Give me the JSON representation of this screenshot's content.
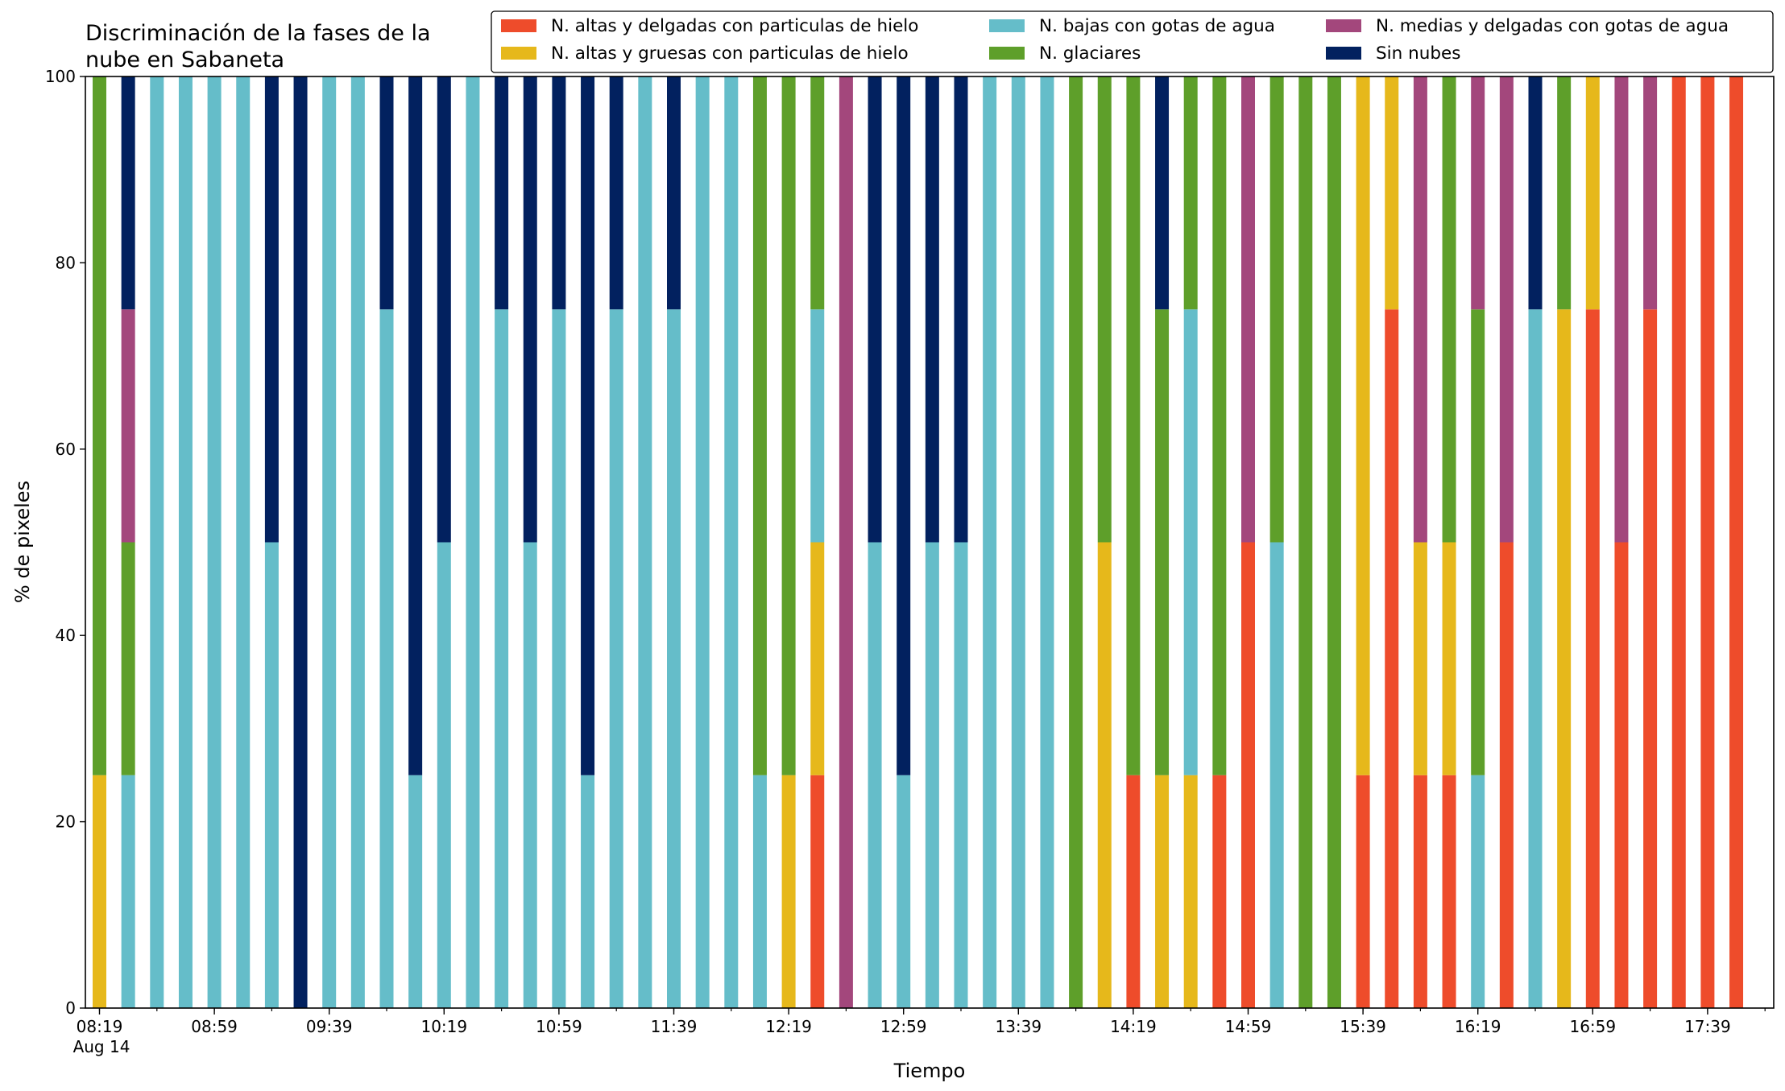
{
  "chart_data": {
    "type": "bar",
    "stacked": true,
    "title_line1": "Discriminación de la fases de la",
    "title_line2": "nube en Sabaneta",
    "xlabel": "Tiempo",
    "ylabel": "% de pixeles",
    "ylim": [
      0,
      100
    ],
    "yticks": [
      0,
      20,
      40,
      60,
      80,
      100
    ],
    "date_label": "Aug 14",
    "x_start": "08:19",
    "x_step_minutes": 10,
    "xtick_labels": [
      "08:19",
      "08:59",
      "09:39",
      "10:19",
      "10:59",
      "11:39",
      "12:19",
      "12:59",
      "13:39",
      "14:19",
      "14:59",
      "15:39",
      "16:19",
      "16:59",
      "17:39"
    ],
    "grid": false,
    "legend_position": "top-right",
    "colors": {
      "alta_delgada": "#ee4c2b",
      "alta_gruesa": "#e6b81b",
      "baja_agua": "#65bdc9",
      "glaciar": "#5e9f2a",
      "media_agua": "#a3477c",
      "sin_nubes": "#02215f"
    },
    "legend": [
      {
        "key": "alta_delgada",
        "label": "N. altas y delgadas con particulas de hielo"
      },
      {
        "key": "alta_gruesa",
        "label": "N. altas y gruesas con particulas de hielo"
      },
      {
        "key": "baja_agua",
        "label": "N. bajas con gotas de agua"
      },
      {
        "key": "glaciar",
        "label": "N. glaciares"
      },
      {
        "key": "media_agua",
        "label": "N. medias y delgadas con gotas de agua"
      },
      {
        "key": "sin_nubes",
        "label": "Sin nubes"
      }
    ],
    "stack_order": [
      "alta_delgada",
      "alta_gruesa",
      "baja_agua",
      "glaciar",
      "media_agua",
      "sin_nubes"
    ],
    "bars": [
      {
        "time": "08:19",
        "alta_delgada": 0,
        "alta_gruesa": 25,
        "baja_agua": 0,
        "glaciar": 75,
        "media_agua": 0,
        "sin_nubes": 0
      },
      {
        "time": "08:29",
        "alta_delgada": 0,
        "alta_gruesa": 0,
        "baja_agua": 25,
        "glaciar": 25,
        "media_agua": 25,
        "sin_nubes": 25
      },
      {
        "time": "08:39",
        "alta_delgada": 0,
        "alta_gruesa": 0,
        "baja_agua": 100,
        "glaciar": 0,
        "media_agua": 0,
        "sin_nubes": 0
      },
      {
        "time": "08:49",
        "alta_delgada": 0,
        "alta_gruesa": 0,
        "baja_agua": 100,
        "glaciar": 0,
        "media_agua": 0,
        "sin_nubes": 0
      },
      {
        "time": "08:59",
        "alta_delgada": 0,
        "alta_gruesa": 0,
        "baja_agua": 100,
        "glaciar": 0,
        "media_agua": 0,
        "sin_nubes": 0
      },
      {
        "time": "09:09",
        "alta_delgada": 0,
        "alta_gruesa": 0,
        "baja_agua": 100,
        "glaciar": 0,
        "media_agua": 0,
        "sin_nubes": 0
      },
      {
        "time": "09:19",
        "alta_delgada": 0,
        "alta_gruesa": 0,
        "baja_agua": 50,
        "glaciar": 0,
        "media_agua": 0,
        "sin_nubes": 50
      },
      {
        "time": "09:29",
        "alta_delgada": 0,
        "alta_gruesa": 0,
        "baja_agua": 0,
        "glaciar": 0,
        "media_agua": 0,
        "sin_nubes": 100
      },
      {
        "time": "09:39",
        "alta_delgada": 0,
        "alta_gruesa": 0,
        "baja_agua": 100,
        "glaciar": 0,
        "media_agua": 0,
        "sin_nubes": 0
      },
      {
        "time": "09:49",
        "alta_delgada": 0,
        "alta_gruesa": 0,
        "baja_agua": 100,
        "glaciar": 0,
        "media_agua": 0,
        "sin_nubes": 0
      },
      {
        "time": "09:59",
        "alta_delgada": 0,
        "alta_gruesa": 0,
        "baja_agua": 75,
        "glaciar": 0,
        "media_agua": 0,
        "sin_nubes": 25
      },
      {
        "time": "10:09",
        "alta_delgada": 0,
        "alta_gruesa": 0,
        "baja_agua": 25,
        "glaciar": 0,
        "media_agua": 0,
        "sin_nubes": 75
      },
      {
        "time": "10:19",
        "alta_delgada": 0,
        "alta_gruesa": 0,
        "baja_agua": 50,
        "glaciar": 0,
        "media_agua": 0,
        "sin_nubes": 50
      },
      {
        "time": "10:29",
        "alta_delgada": 0,
        "alta_gruesa": 0,
        "baja_agua": 100,
        "glaciar": 0,
        "media_agua": 0,
        "sin_nubes": 0
      },
      {
        "time": "10:39",
        "alta_delgada": 0,
        "alta_gruesa": 0,
        "baja_agua": 75,
        "glaciar": 0,
        "media_agua": 0,
        "sin_nubes": 25
      },
      {
        "time": "10:49",
        "alta_delgada": 0,
        "alta_gruesa": 0,
        "baja_agua": 50,
        "glaciar": 0,
        "media_agua": 0,
        "sin_nubes": 50
      },
      {
        "time": "10:59",
        "alta_delgada": 0,
        "alta_gruesa": 0,
        "baja_agua": 75,
        "glaciar": 0,
        "media_agua": 0,
        "sin_nubes": 25
      },
      {
        "time": "11:09",
        "alta_delgada": 0,
        "alta_gruesa": 0,
        "baja_agua": 25,
        "glaciar": 0,
        "media_agua": 0,
        "sin_nubes": 75
      },
      {
        "time": "11:19",
        "alta_delgada": 0,
        "alta_gruesa": 0,
        "baja_agua": 75,
        "glaciar": 0,
        "media_agua": 0,
        "sin_nubes": 25
      },
      {
        "time": "11:29",
        "alta_delgada": 0,
        "alta_gruesa": 0,
        "baja_agua": 100,
        "glaciar": 0,
        "media_agua": 0,
        "sin_nubes": 0
      },
      {
        "time": "11:39",
        "alta_delgada": 0,
        "alta_gruesa": 0,
        "baja_agua": 75,
        "glaciar": 0,
        "media_agua": 0,
        "sin_nubes": 25
      },
      {
        "time": "11:49",
        "alta_delgada": 0,
        "alta_gruesa": 0,
        "baja_agua": 100,
        "glaciar": 0,
        "media_agua": 0,
        "sin_nubes": 0
      },
      {
        "time": "11:59",
        "alta_delgada": 0,
        "alta_gruesa": 0,
        "baja_agua": 100,
        "glaciar": 0,
        "media_agua": 0,
        "sin_nubes": 0
      },
      {
        "time": "12:09",
        "alta_delgada": 0,
        "alta_gruesa": 0,
        "baja_agua": 25,
        "glaciar": 75,
        "media_agua": 0,
        "sin_nubes": 0
      },
      {
        "time": "12:19",
        "alta_delgada": 0,
        "alta_gruesa": 25,
        "baja_agua": 0,
        "glaciar": 75,
        "media_agua": 0,
        "sin_nubes": 0
      },
      {
        "time": "12:29",
        "alta_delgada": 25,
        "alta_gruesa": 25,
        "baja_agua": 25,
        "glaciar": 25,
        "media_agua": 0,
        "sin_nubes": 0
      },
      {
        "time": "12:39",
        "alta_delgada": 0,
        "alta_gruesa": 0,
        "baja_agua": 0,
        "glaciar": 0,
        "media_agua": 100,
        "sin_nubes": 0
      },
      {
        "time": "12:49",
        "alta_delgada": 0,
        "alta_gruesa": 0,
        "baja_agua": 50,
        "glaciar": 0,
        "media_agua": 0,
        "sin_nubes": 50
      },
      {
        "time": "12:59",
        "alta_delgada": 0,
        "alta_gruesa": 0,
        "baja_agua": 25,
        "glaciar": 0,
        "media_agua": 0,
        "sin_nubes": 75
      },
      {
        "time": "13:09",
        "alta_delgada": 0,
        "alta_gruesa": 0,
        "baja_agua": 50,
        "glaciar": 0,
        "media_agua": 0,
        "sin_nubes": 50
      },
      {
        "time": "13:19",
        "alta_delgada": 0,
        "alta_gruesa": 0,
        "baja_agua": 50,
        "glaciar": 0,
        "media_agua": 0,
        "sin_nubes": 50
      },
      {
        "time": "13:29",
        "alta_delgada": 0,
        "alta_gruesa": 0,
        "baja_agua": 100,
        "glaciar": 0,
        "media_agua": 0,
        "sin_nubes": 0
      },
      {
        "time": "13:39",
        "alta_delgada": 0,
        "alta_gruesa": 0,
        "baja_agua": 100,
        "glaciar": 0,
        "media_agua": 0,
        "sin_nubes": 0
      },
      {
        "time": "13:49",
        "alta_delgada": 0,
        "alta_gruesa": 0,
        "baja_agua": 100,
        "glaciar": 0,
        "media_agua": 0,
        "sin_nubes": 0
      },
      {
        "time": "13:59",
        "alta_delgada": 0,
        "alta_gruesa": 0,
        "baja_agua": 0,
        "glaciar": 100,
        "media_agua": 0,
        "sin_nubes": 0
      },
      {
        "time": "14:09",
        "alta_delgada": 0,
        "alta_gruesa": 50,
        "baja_agua": 0,
        "glaciar": 50,
        "media_agua": 0,
        "sin_nubes": 0
      },
      {
        "time": "14:19",
        "alta_delgada": 25,
        "alta_gruesa": 0,
        "baja_agua": 0,
        "glaciar": 75,
        "media_agua": 0,
        "sin_nubes": 0
      },
      {
        "time": "14:29",
        "alta_delgada": 0,
        "alta_gruesa": 25,
        "baja_agua": 0,
        "glaciar": 50,
        "media_agua": 0,
        "sin_nubes": 25
      },
      {
        "time": "14:39",
        "alta_delgada": 0,
        "alta_gruesa": 25,
        "baja_agua": 50,
        "glaciar": 25,
        "media_agua": 0,
        "sin_nubes": 0
      },
      {
        "time": "14:49",
        "alta_delgada": 25,
        "alta_gruesa": 0,
        "baja_agua": 0,
        "glaciar": 75,
        "media_agua": 0,
        "sin_nubes": 0
      },
      {
        "time": "14:59",
        "alta_delgada": 50,
        "alta_gruesa": 0,
        "baja_agua": 0,
        "glaciar": 0,
        "media_agua": 50,
        "sin_nubes": 0
      },
      {
        "time": "15:09",
        "alta_delgada": 0,
        "alta_gruesa": 0,
        "baja_agua": 50,
        "glaciar": 50,
        "media_agua": 0,
        "sin_nubes": 0
      },
      {
        "time": "15:19",
        "alta_delgada": 0,
        "alta_gruesa": 0,
        "baja_agua": 0,
        "glaciar": 100,
        "media_agua": 0,
        "sin_nubes": 0
      },
      {
        "time": "15:29",
        "alta_delgada": 0,
        "alta_gruesa": 0,
        "baja_agua": 0,
        "glaciar": 100,
        "media_agua": 0,
        "sin_nubes": 0
      },
      {
        "time": "15:39",
        "alta_delgada": 25,
        "alta_gruesa": 75,
        "baja_agua": 0,
        "glaciar": 0,
        "media_agua": 0,
        "sin_nubes": 0
      },
      {
        "time": "15:49",
        "alta_delgada": 75,
        "alta_gruesa": 25,
        "baja_agua": 0,
        "glaciar": 0,
        "media_agua": 0,
        "sin_nubes": 0
      },
      {
        "time": "15:59",
        "alta_delgada": 25,
        "alta_gruesa": 25,
        "baja_agua": 0,
        "glaciar": 0,
        "media_agua": 50,
        "sin_nubes": 0
      },
      {
        "time": "16:09",
        "alta_delgada": 25,
        "alta_gruesa": 25,
        "baja_agua": 0,
        "glaciar": 50,
        "media_agua": 0,
        "sin_nubes": 0
      },
      {
        "time": "16:19",
        "alta_delgada": 0,
        "alta_gruesa": 0,
        "baja_agua": 25,
        "glaciar": 50,
        "media_agua": 25,
        "sin_nubes": 0
      },
      {
        "time": "16:29",
        "alta_delgada": 50,
        "alta_gruesa": 0,
        "baja_agua": 0,
        "glaciar": 0,
        "media_agua": 50,
        "sin_nubes": 0
      },
      {
        "time": "16:39",
        "alta_delgada": 0,
        "alta_gruesa": 0,
        "baja_agua": 75,
        "glaciar": 0,
        "media_agua": 0,
        "sin_nubes": 25
      },
      {
        "time": "16:49",
        "alta_delgada": 0,
        "alta_gruesa": 75,
        "baja_agua": 0,
        "glaciar": 25,
        "media_agua": 0,
        "sin_nubes": 0
      },
      {
        "time": "16:59",
        "alta_delgada": 75,
        "alta_gruesa": 25,
        "baja_agua": 0,
        "glaciar": 0,
        "media_agua": 0,
        "sin_nubes": 0
      },
      {
        "time": "17:09",
        "alta_delgada": 50,
        "alta_gruesa": 0,
        "baja_agua": 0,
        "glaciar": 0,
        "media_agua": 50,
        "sin_nubes": 0
      },
      {
        "time": "17:19",
        "alta_delgada": 75,
        "alta_gruesa": 0,
        "baja_agua": 0,
        "glaciar": 0,
        "media_agua": 25,
        "sin_nubes": 0
      },
      {
        "time": "17:29",
        "alta_delgada": 100,
        "alta_gruesa": 0,
        "baja_agua": 0,
        "glaciar": 0,
        "media_agua": 0,
        "sin_nubes": 0
      },
      {
        "time": "17:39",
        "alta_delgada": 100,
        "alta_gruesa": 0,
        "baja_agua": 0,
        "glaciar": 0,
        "media_agua": 0,
        "sin_nubes": 0
      },
      {
        "time": "17:49",
        "alta_delgada": 100,
        "alta_gruesa": 0,
        "baja_agua": 0,
        "glaciar": 0,
        "media_agua": 0,
        "sin_nubes": 0
      }
    ]
  }
}
